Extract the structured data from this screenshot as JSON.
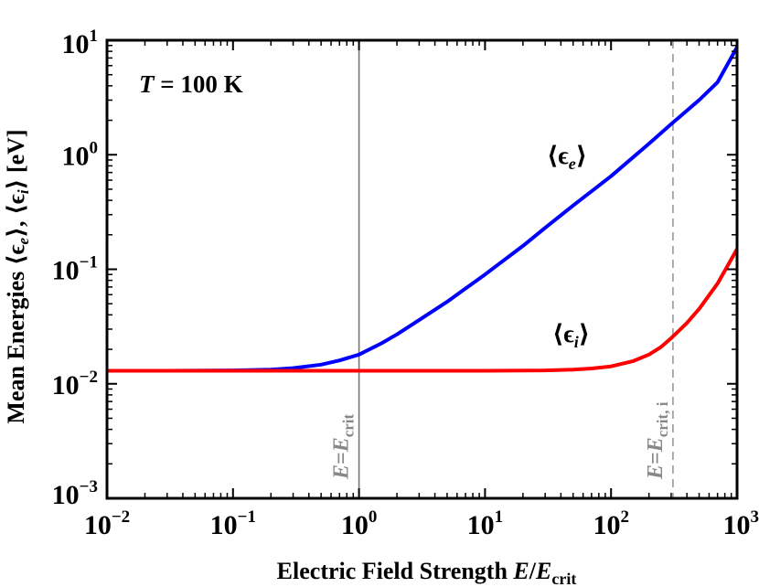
{
  "chart_data": {
    "type": "line",
    "x_scale": "log",
    "y_scale": "log",
    "xlim": [
      0.01,
      1000
    ],
    "ylim": [
      0.001,
      10
    ],
    "xlabel": {
      "prefix": "Electric Field Strength",
      "italic": "E",
      "slash": "/",
      "italic2": "E",
      "sub": "crit"
    },
    "ylabel": {
      "prefix": "Mean Energies",
      "series": "⟨ϵ",
      "sub_e": "e",
      "mid": "⟩, ⟨ϵ",
      "sub_i": "i",
      "suffix": "⟩  [eV]"
    },
    "x_ticks": [
      {
        "value": 0.01,
        "base": "10",
        "exp": "−2"
      },
      {
        "value": 0.1,
        "base": "10",
        "exp": "−1"
      },
      {
        "value": 1,
        "base": "10",
        "exp": "0"
      },
      {
        "value": 10,
        "base": "10",
        "exp": "1"
      },
      {
        "value": 100,
        "base": "10",
        "exp": "2"
      },
      {
        "value": 1000,
        "base": "10",
        "exp": "3"
      }
    ],
    "y_ticks": [
      {
        "value": 0.001,
        "base": "10",
        "exp": "−3"
      },
      {
        "value": 0.01,
        "base": "10",
        "exp": "−2"
      },
      {
        "value": 0.1,
        "base": "10",
        "exp": "−1"
      },
      {
        "value": 1,
        "base": "10",
        "exp": "0"
      },
      {
        "value": 10,
        "base": "10",
        "exp": "1"
      }
    ],
    "temperature_label": {
      "symbol": "T",
      "rest": " = 100 K"
    },
    "series": [
      {
        "label_main": "⟨ϵ",
        "label_sub": "e",
        "label_close": "⟩",
        "color": "#0000ff",
        "x": [
          0.01,
          0.03,
          0.1,
          0.2,
          0.3,
          0.5,
          0.7,
          1,
          1.5,
          2,
          3,
          5,
          7,
          10,
          20,
          30,
          50,
          70,
          100,
          200,
          300,
          500,
          700,
          1000
        ],
        "y": [
          0.013,
          0.013,
          0.0131,
          0.0133,
          0.0137,
          0.0147,
          0.016,
          0.018,
          0.0225,
          0.027,
          0.036,
          0.052,
          0.068,
          0.09,
          0.16,
          0.23,
          0.36,
          0.48,
          0.65,
          1.25,
          1.85,
          3.0,
          4.3,
          8.7
        ]
      },
      {
        "label_main": "⟨ϵ",
        "label_sub": "i",
        "label_close": "⟩",
        "color": "#ff0000",
        "x": [
          0.01,
          0.1,
          1,
          10,
          30,
          50,
          70,
          100,
          150,
          200,
          250,
          300,
          400,
          500,
          700,
          1000
        ],
        "y": [
          0.013,
          0.013,
          0.013,
          0.013,
          0.0131,
          0.0133,
          0.0136,
          0.0142,
          0.0158,
          0.018,
          0.021,
          0.025,
          0.034,
          0.045,
          0.075,
          0.15
        ]
      }
    ],
    "vertical_lines": [
      {
        "x": 1,
        "style": "solid",
        "color": "#777777",
        "label_italic": "E",
        "label_eq": "=",
        "label_italic2": "E",
        "label_sub": "crit"
      },
      {
        "x": 310,
        "style": "dashed",
        "color": "#999999",
        "label_italic": "E",
        "label_eq": "=",
        "label_italic2": "E",
        "label_sub": "crit, i"
      }
    ]
  }
}
